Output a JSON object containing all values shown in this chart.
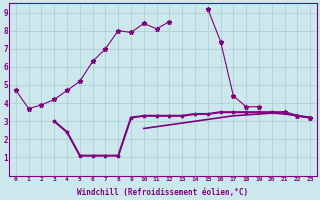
{
  "xlabel": "Windchill (Refroidissement éolien,°C)",
  "background_color": "#cce8ec",
  "line_color": "#800080",
  "xlim": [
    -0.5,
    23.5
  ],
  "ylim": [
    0,
    9.5
  ],
  "x": [
    0,
    1,
    2,
    3,
    4,
    5,
    6,
    7,
    8,
    9,
    10,
    11,
    12,
    13,
    14,
    15,
    16,
    17,
    18,
    19,
    20,
    21,
    22,
    23
  ],
  "line1": [
    4.7,
    3.7,
    3.9,
    4.2,
    4.7,
    5.2,
    6.3,
    7.0,
    8.0,
    7.9,
    8.4,
    8.1,
    8.5,
    null,
    null,
    9.2,
    7.4,
    4.4,
    3.8,
    3.8,
    null,
    3.5,
    3.3,
    3.2
  ],
  "line2": [
    null,
    null,
    null,
    3.0,
    2.4,
    1.1,
    1.1,
    1.1,
    1.1,
    3.2,
    3.3,
    3.3,
    3.3,
    3.3,
    3.4,
    3.4,
    3.5,
    3.5,
    3.5,
    3.5,
    3.5,
    3.5,
    3.3,
    3.2
  ],
  "line3": [
    null,
    null,
    null,
    null,
    null,
    null,
    null,
    null,
    null,
    null,
    2.6,
    2.7,
    2.8,
    2.9,
    3.0,
    3.1,
    3.2,
    3.3,
    3.35,
    3.4,
    3.45,
    3.4,
    3.3,
    3.2
  ],
  "ytick_vals": [
    1,
    2,
    3,
    4,
    5,
    6,
    7,
    8,
    9
  ],
  "xtick_labels": [
    "0",
    "1",
    "2",
    "3",
    "4",
    "5",
    "6",
    "7",
    "8",
    "9",
    "10",
    "11",
    "12",
    "13",
    "14",
    "15",
    "16",
    "17",
    "18",
    "19",
    "20",
    "21",
    "22",
    "23"
  ]
}
